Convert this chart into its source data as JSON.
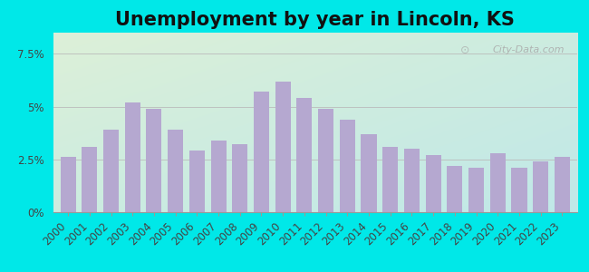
{
  "title": "Unemployment by year in Lincoln, KS",
  "years": [
    2000,
    2001,
    2002,
    2003,
    2004,
    2005,
    2006,
    2007,
    2008,
    2009,
    2010,
    2011,
    2012,
    2013,
    2014,
    2015,
    2016,
    2017,
    2018,
    2019,
    2020,
    2021,
    2022,
    2023
  ],
  "values": [
    2.6,
    3.1,
    3.9,
    5.2,
    4.9,
    3.9,
    2.9,
    3.4,
    3.2,
    5.7,
    6.2,
    5.4,
    4.9,
    4.4,
    3.7,
    3.1,
    3.0,
    2.7,
    2.2,
    2.1,
    2.8,
    2.1,
    2.4,
    2.6
  ],
  "bar_color": "#b5a8d0",
  "ylim": [
    0,
    8.5
  ],
  "yticks": [
    0,
    2.5,
    5.0,
    7.5
  ],
  "ytick_labels": [
    "0%",
    "2.5%",
    "5%",
    "7.5%"
  ],
  "bg_outer": "#00e8e8",
  "bg_plot_topleft": "#ddf0d8",
  "bg_plot_bottomright": "#c8eae8",
  "watermark": "City-Data.com",
  "title_fontsize": 15,
  "tick_fontsize": 8.5,
  "title_color": "#111111"
}
